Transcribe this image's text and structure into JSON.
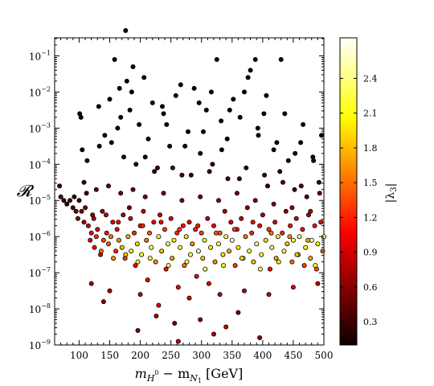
{
  "chart_data": {
    "type": "scatter",
    "ylabel": "𝓡",
    "xlabel_main": "m",
    "xlabel_sub1": "H",
    "xlabel_sup": "0",
    "xlabel_minus": " − m",
    "xlabel_sub2": "N",
    "xlabel_sub2_sub": "1",
    "xlabel_unit": " [GeV]",
    "xlim": [
      60,
      500
    ],
    "ylim_log10": [
      -9,
      -0.5
    ],
    "y_scale": "log",
    "grid": false,
    "x_ticks": [
      100,
      150,
      200,
      250,
      300,
      350,
      400,
      450,
      500
    ],
    "x_tick_labels": [
      "100",
      "150",
      "200",
      "250",
      "300",
      "350",
      "400",
      "450",
      "500"
    ],
    "y_tick_exponents": [
      -9,
      -8,
      -7,
      -6,
      -5,
      -4,
      -3,
      -2,
      -1
    ],
    "y_tick_labels": [
      {
        "base": "10",
        "exp": "−9"
      },
      {
        "base": "10",
        "exp": "−8"
      },
      {
        "base": "10",
        "exp": "−7"
      },
      {
        "base": "10",
        "exp": "−6"
      },
      {
        "base": "10",
        "exp": "−5"
      },
      {
        "base": "10",
        "exp": "−4"
      },
      {
        "base": "10",
        "exp": "−3"
      },
      {
        "base": "10",
        "exp": "−2"
      },
      {
        "base": "10",
        "exp": "−1"
      }
    ],
    "colorbar": {
      "label_pre": "|λ",
      "label_sub": "3",
      "label_post": "|",
      "colormap": "hot",
      "range": [
        0.1,
        2.75
      ],
      "ticks": [
        0.3,
        0.6,
        0.9,
        1.2,
        1.5,
        1.8,
        2.1,
        2.4
      ],
      "tick_labels": [
        "0.3",
        "0.6",
        "0.9",
        "1.2",
        "1.5",
        "1.8",
        "2.1",
        "2.4"
      ]
    },
    "points": [
      [
        68,
        -4.6,
        0.3
      ],
      [
        70,
        -4.9,
        0.4
      ],
      [
        75,
        -5.0,
        0.3
      ],
      [
        80,
        -5.1,
        0.3
      ],
      [
        85,
        -5.0,
        0.4
      ],
      [
        90,
        -5.2,
        0.4
      ],
      [
        92,
        -4.9,
        0.3
      ],
      [
        95,
        -5.3,
        0.5
      ],
      [
        98,
        -5.5,
        0.6
      ],
      [
        100,
        -5.0,
        0.3
      ],
      [
        101,
        -2.6,
        0.05
      ],
      [
        103,
        -2.7,
        0.05
      ],
      [
        105,
        -3.6,
        0.1
      ],
      [
        108,
        -5.6,
        0.7
      ],
      [
        110,
        -5.2,
        0.5
      ],
      [
        112,
        -4.8,
        0.3
      ],
      [
        115,
        -5.7,
        0.8
      ],
      [
        118,
        -6.1,
        0.9
      ],
      [
        120,
        -5.9,
        1.0
      ],
      [
        122,
        -5.4,
        0.6
      ],
      [
        125,
        -6.3,
        1.1
      ],
      [
        128,
        -6.0,
        1.2
      ],
      [
        130,
        -5.8,
        0.9
      ],
      [
        132,
        -2.4,
        0.05
      ],
      [
        135,
        -6.5,
        0.9
      ],
      [
        138,
        -5.3,
        0.6
      ],
      [
        140,
        -6.1,
        1.3
      ],
      [
        142,
        -3.2,
        0.1
      ],
      [
        145,
        -5.9,
        1.1
      ],
      [
        148,
        -6.2,
        1.4
      ],
      [
        150,
        -2.2,
        0.05
      ],
      [
        152,
        -6.0,
        1.5
      ],
      [
        155,
        -5.6,
        0.9
      ],
      [
        158,
        -1.1,
        0.05
      ],
      [
        160,
        -6.4,
        1.2
      ],
      [
        162,
        -5.8,
        1.0
      ],
      [
        165,
        -6.1,
        1.6
      ],
      [
        168,
        -2.7,
        0.1
      ],
      [
        170,
        -6.3,
        1.8
      ],
      [
        172,
        -5.4,
        0.7
      ],
      [
        175,
        -6.6,
        1.3
      ],
      [
        178,
        -1.7,
        0.05
      ],
      [
        180,
        -6.0,
        1.7
      ],
      [
        182,
        -5.2,
        0.5
      ],
      [
        185,
        -6.4,
        2.0
      ],
      [
        188,
        -1.3,
        0.05
      ],
      [
        190,
        -5.9,
        1.2
      ],
      [
        192,
        -6.8,
        1.0
      ],
      [
        195,
        -6.2,
        1.9
      ],
      [
        198,
        -2.9,
        0.1
      ],
      [
        200,
        -5.7,
        1.1
      ],
      [
        202,
        -6.5,
        2.2
      ],
      [
        205,
        -5.3,
        0.8
      ],
      [
        208,
        -3.8,
        0.2
      ],
      [
        210,
        -6.1,
        1.5
      ],
      [
        212,
        -7.2,
        0.9
      ],
      [
        215,
        -5.9,
        1.4
      ],
      [
        218,
        -6.3,
        2.3
      ],
      [
        220,
        -2.3,
        0.05
      ],
      [
        222,
        -5.6,
        1.0
      ],
      [
        225,
        -6.7,
        1.6
      ],
      [
        228,
        -4.1,
        0.3
      ],
      [
        230,
        -6.0,
        2.1
      ],
      [
        232,
        -5.4,
        0.8
      ],
      [
        235,
        -6.4,
        1.8
      ],
      [
        238,
        -2.6,
        0.05
      ],
      [
        240,
        -5.8,
        1.3
      ],
      [
        242,
        -6.9,
        1.1
      ],
      [
        245,
        -6.2,
        2.4
      ],
      [
        248,
        -3.5,
        0.15
      ],
      [
        250,
        -5.5,
        0.9
      ],
      [
        252,
        -6.6,
        1.7
      ],
      [
        255,
        -6.1,
        2.0
      ],
      [
        258,
        -2.1,
        0.05
      ],
      [
        260,
        -5.9,
        1.2
      ],
      [
        262,
        -7.4,
        1.0
      ],
      [
        265,
        -6.3,
        2.2
      ],
      [
        268,
        -4.3,
        0.3
      ],
      [
        270,
        -5.7,
        1.1
      ],
      [
        272,
        -6.8,
        1.5
      ],
      [
        275,
        -6.0,
        1.9
      ],
      [
        278,
        -3.1,
        0.1
      ],
      [
        280,
        -5.6,
        0.9
      ],
      [
        282,
        -6.5,
        2.3
      ],
      [
        285,
        -6.2,
        1.6
      ],
      [
        288,
        -1.9,
        0.05
      ],
      [
        290,
        -5.8,
        1.2
      ],
      [
        292,
        -7.1,
        1.0
      ],
      [
        295,
        -6.4,
        2.5
      ],
      [
        298,
        -3.7,
        0.2
      ],
      [
        300,
        -5.9,
        1.3
      ],
      [
        302,
        -6.6,
        1.8
      ],
      [
        305,
        -6.1,
        2.1
      ],
      [
        308,
        -2.5,
        0.05
      ],
      [
        310,
        -5.5,
        0.8
      ],
      [
        312,
        -7.3,
        0.9
      ],
      [
        315,
        -6.3,
        2.0
      ],
      [
        318,
        -4.0,
        0.25
      ],
      [
        320,
        -5.7,
        1.0
      ],
      [
        322,
        -6.7,
        1.6
      ],
      [
        325,
        -1.1,
        0.05
      ],
      [
        328,
        -6.2,
        2.4
      ],
      [
        330,
        -5.9,
        1.4
      ],
      [
        332,
        -2.8,
        0.1
      ],
      [
        335,
        -6.5,
        1.9
      ],
      [
        338,
        -5.3,
        0.7
      ],
      [
        340,
        -6.0,
        2.2
      ],
      [
        342,
        -3.3,
        0.1
      ],
      [
        345,
        -6.4,
        1.7
      ],
      [
        348,
        -5.6,
        0.9
      ],
      [
        350,
        -6.1,
        2.6
      ],
      [
        352,
        -2.2,
        0.05
      ],
      [
        355,
        -6.8,
        1.3
      ],
      [
        358,
        -5.8,
        1.1
      ],
      [
        360,
        -6.3,
        2.0
      ],
      [
        362,
        -4.4,
        0.3
      ],
      [
        365,
        -5.5,
        0.8
      ],
      [
        368,
        -6.6,
        2.3
      ],
      [
        370,
        -2.0,
        0.05
      ],
      [
        372,
        -6.0,
        1.5
      ],
      [
        375,
        -5.2,
        0.6
      ],
      [
        378,
        -6.4,
        2.1
      ],
      [
        380,
        -1.4,
        0.05
      ],
      [
        382,
        -5.9,
        1.2
      ],
      [
        385,
        -6.7,
        1.8
      ],
      [
        388,
        -1.1,
        0.05
      ],
      [
        390,
        -6.2,
        2.5
      ],
      [
        392,
        -3.0,
        0.1
      ],
      [
        395,
        -5.7,
        1.0
      ],
      [
        398,
        -6.5,
        2.2
      ],
      [
        400,
        -5.4,
        0.7
      ],
      [
        402,
        -2.6,
        0.05
      ],
      [
        405,
        -6.1,
        1.9
      ],
      [
        408,
        -4.6,
        0.3
      ],
      [
        410,
        -5.8,
        1.3
      ],
      [
        412,
        -6.9,
        1.1
      ],
      [
        415,
        -6.3,
        2.4
      ],
      [
        418,
        -3.6,
        0.15
      ],
      [
        420,
        -5.6,
        0.9
      ],
      [
        422,
        -6.6,
        1.7
      ],
      [
        425,
        -6.0,
        2.0
      ],
      [
        428,
        -4.2,
        0.3
      ],
      [
        430,
        -1.1,
        0.05
      ],
      [
        432,
        -5.9,
        1.2
      ],
      [
        435,
        -6.4,
        2.3
      ],
      [
        438,
        -5.3,
        0.6
      ],
      [
        440,
        -6.2,
        1.8
      ],
      [
        442,
        -3.9,
        0.2
      ],
      [
        445,
        -5.7,
        1.1
      ],
      [
        448,
        -6.7,
        1.5
      ],
      [
        450,
        -6.1,
        2.2
      ],
      [
        452,
        -4.7,
        0.3
      ],
      [
        455,
        -5.5,
        0.8
      ],
      [
        458,
        -6.5,
        1.9
      ],
      [
        460,
        -6.0,
        2.4
      ],
      [
        462,
        -3.4,
        0.1
      ],
      [
        465,
        -5.8,
        1.0
      ],
      [
        468,
        -6.8,
        1.3
      ],
      [
        470,
        -6.3,
        2.1
      ],
      [
        472,
        -4.9,
        0.4
      ],
      [
        475,
        -5.4,
        0.7
      ],
      [
        478,
        -6.6,
        1.7
      ],
      [
        480,
        -6.1,
        2.5
      ],
      [
        482,
        -3.8,
        0.2
      ],
      [
        485,
        -5.7,
        1.1
      ],
      [
        488,
        -6.9,
        1.4
      ],
      [
        490,
        -6.2,
        2.0
      ],
      [
        492,
        -4.5,
        0.3
      ],
      [
        495,
        -5.6,
        0.9
      ],
      [
        498,
        -6.4,
        1.6
      ],
      [
        500,
        -6.0,
        2.3
      ],
      [
        176,
        -0.3,
        0.05
      ],
      [
        196,
        -8.6,
        0.6
      ],
      [
        226,
        -8.2,
        0.7
      ],
      [
        256,
        -8.4,
        0.5
      ],
      [
        262,
        -8.9,
        0.8
      ],
      [
        298,
        -8.3,
        0.6
      ],
      [
        320,
        -8.7,
        0.7
      ],
      [
        340,
        -8.5,
        0.8
      ],
      [
        360,
        -8.1,
        0.5
      ],
      [
        395,
        -8.8,
        0.6
      ],
      [
        230,
        -7.9,
        0.9
      ],
      [
        200,
        -7.6,
        0.8
      ],
      [
        150,
        -7.5,
        0.7
      ],
      [
        140,
        -7.8,
        0.6
      ],
      [
        120,
        -7.3,
        0.7
      ],
      [
        280,
        -7.7,
        0.9
      ],
      [
        330,
        -7.6,
        0.8
      ],
      [
        370,
        -7.5,
        0.7
      ],
      [
        410,
        -7.6,
        0.8
      ],
      [
        450,
        -7.4,
        0.9
      ],
      [
        490,
        -7.3,
        0.8
      ],
      [
        163,
        -3.0,
        0.1
      ],
      [
        183,
        -2.5,
        0.1
      ],
      [
        213,
        -3.3,
        0.15
      ],
      [
        243,
        -2.9,
        0.1
      ],
      [
        273,
        -3.5,
        0.15
      ],
      [
        303,
        -3.1,
        0.1
      ],
      [
        333,
        -3.6,
        0.15
      ],
      [
        363,
        -2.7,
        0.1
      ],
      [
        393,
        -3.2,
        0.1
      ],
      [
        423,
        -3.4,
        0.15
      ],
      [
        453,
        -3.7,
        0.2
      ],
      [
        483,
        -3.9,
        0.2
      ],
      [
        113,
        -3.9,
        0.2
      ],
      [
        133,
        -3.5,
        0.15
      ],
      [
        153,
        -3.4,
        0.15
      ],
      [
        173,
        -3.8,
        0.2
      ],
      [
        193,
        -4.0,
        0.25
      ],
      [
        223,
        -4.2,
        0.3
      ],
      [
        253,
        -4.1,
        0.3
      ],
      [
        283,
        -4.3,
        0.3
      ],
      [
        313,
        -4.2,
        0.3
      ],
      [
        343,
        -4.4,
        0.35
      ],
      [
        373,
        -4.1,
        0.3
      ],
      [
        403,
        -4.3,
        0.35
      ],
      [
        433,
        -4.5,
        0.4
      ],
      [
        463,
        -4.6,
        0.4
      ],
      [
        493,
        -4.8,
        0.45
      ],
      [
        108,
        -4.5,
        0.3
      ],
      [
        128,
        -4.7,
        0.4
      ],
      [
        148,
        -4.6,
        0.4
      ],
      [
        168,
        -4.8,
        0.5
      ],
      [
        188,
        -4.7,
        0.45
      ],
      [
        208,
        -4.9,
        0.5
      ],
      [
        238,
        -4.8,
        0.5
      ],
      [
        268,
        -5.0,
        0.55
      ],
      [
        298,
        -4.9,
        0.5
      ],
      [
        328,
        -5.0,
        0.6
      ],
      [
        358,
        -4.8,
        0.5
      ],
      [
        388,
        -5.0,
        0.55
      ],
      [
        418,
        -5.1,
        0.6
      ],
      [
        448,
        -5.2,
        0.65
      ],
      [
        478,
        -5.3,
        0.7
      ],
      [
        104,
        -5.3,
        0.5
      ],
      [
        124,
        -5.5,
        0.7
      ],
      [
        144,
        -5.4,
        0.8
      ],
      [
        164,
        -5.6,
        1.0
      ],
      [
        184,
        -5.5,
        0.9
      ],
      [
        204,
        -5.7,
        1.2
      ],
      [
        234,
        -5.6,
        1.1
      ],
      [
        264,
        -5.8,
        1.3
      ],
      [
        294,
        -5.7,
        1.2
      ],
      [
        324,
        -5.9,
        1.4
      ],
      [
        354,
        -5.8,
        1.3
      ],
      [
        384,
        -5.6,
        1.1
      ],
      [
        414,
        -5.9,
        1.5
      ],
      [
        444,
        -6.0,
        1.6
      ],
      [
        474,
        -6.1,
        1.7
      ],
      [
        136,
        -6.4,
        1.5
      ],
      [
        156,
        -6.6,
        1.6
      ],
      [
        176,
        -6.5,
        1.8
      ],
      [
        196,
        -6.7,
        2.0
      ],
      [
        216,
        -6.6,
        2.1
      ],
      [
        246,
        -6.8,
        2.3
      ],
      [
        276,
        -6.7,
        2.2
      ],
      [
        306,
        -6.9,
        2.4
      ],
      [
        336,
        -6.8,
        2.1
      ],
      [
        366,
        -6.6,
        1.9
      ],
      [
        396,
        -6.9,
        2.3
      ],
      [
        426,
        -6.7,
        2.0
      ],
      [
        456,
        -6.5,
        1.8
      ],
      [
        486,
        -6.8,
        2.2
      ],
      [
        166,
        -1.9,
        0.05
      ],
      [
        186,
        -2.0,
        0.05
      ],
      [
        206,
        -1.6,
        0.05
      ],
      [
        236,
        -2.4,
        0.05
      ],
      [
        266,
        -1.8,
        0.05
      ],
      [
        296,
        -2.3,
        0.05
      ],
      [
        316,
        -2.0,
        0.05
      ],
      [
        346,
        -2.5,
        0.05
      ],
      [
        376,
        -1.6,
        0.05
      ],
      [
        406,
        -2.1,
        0.05
      ],
      [
        436,
        -2.6,
        0.05
      ],
      [
        466,
        -2.9,
        0.1
      ],
      [
        496,
        -3.2,
        0.1
      ]
    ]
  }
}
